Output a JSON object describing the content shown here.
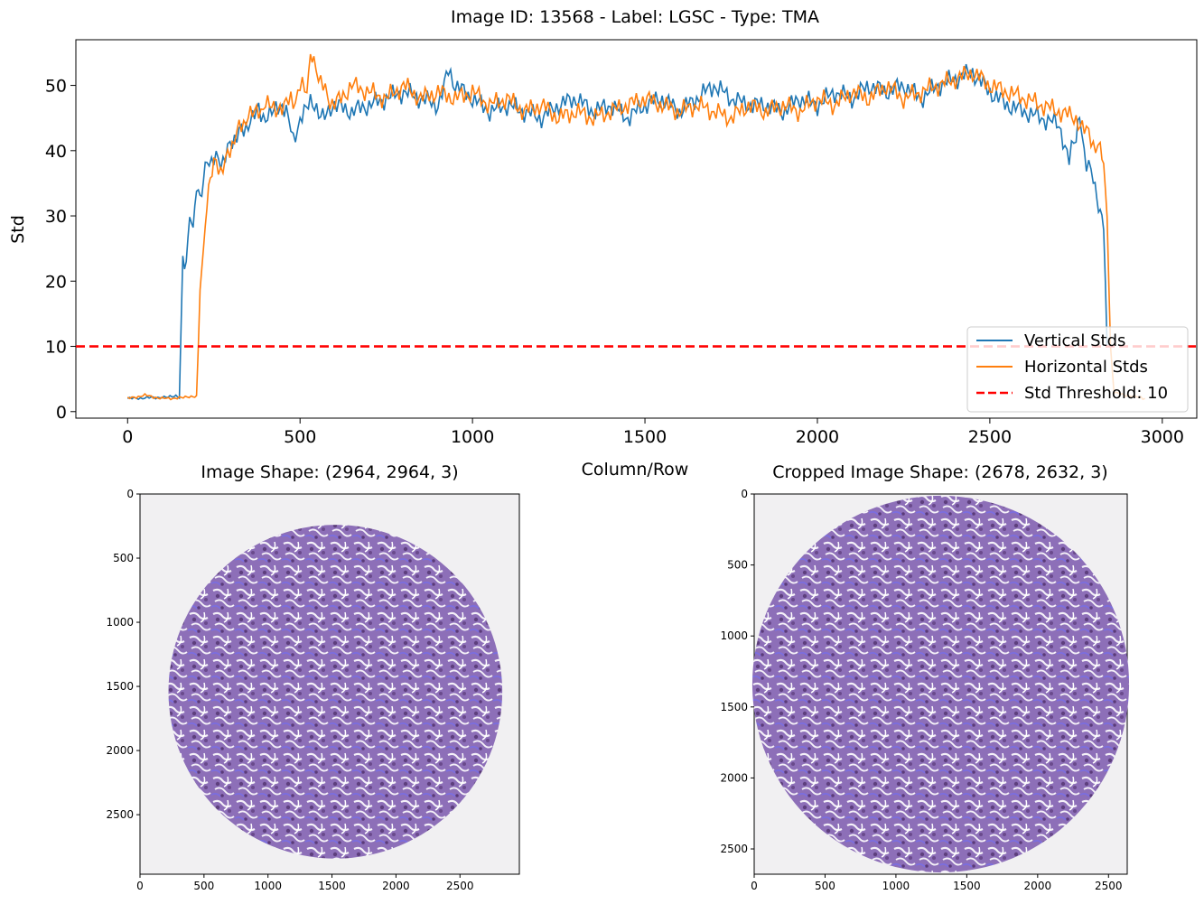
{
  "chart_data": [
    {
      "type": "line",
      "title": "Image ID: 13568 - Label: LGSC - Type: TMA",
      "xlabel": "Column/Row",
      "ylabel": "Std",
      "xlim": [
        -150,
        3100
      ],
      "ylim": [
        -1,
        57
      ],
      "xticks": [
        0,
        500,
        1000,
        1500,
        2000,
        2500,
        3000
      ],
      "yticks": [
        0,
        10,
        20,
        30,
        40,
        50
      ],
      "legend_position": "lower-right",
      "threshold": {
        "name": "Std Threshold: 10",
        "value": 10,
        "color": "#ff0000"
      },
      "series": [
        {
          "name": "Vertical Stds",
          "color": "#1f77b4",
          "x": [
            0,
            50,
            100,
            140,
            150,
            160,
            170,
            180,
            190,
            200,
            210,
            220,
            230,
            250,
            270,
            290,
            310,
            330,
            350,
            380,
            400,
            430,
            460,
            480,
            500,
            530,
            560,
            600,
            650,
            700,
            750,
            800,
            850,
            900,
            930,
            950,
            1000,
            1050,
            1100,
            1150,
            1200,
            1250,
            1300,
            1350,
            1400,
            1450,
            1500,
            1550,
            1600,
            1650,
            1700,
            1750,
            1800,
            1850,
            1900,
            1950,
            2000,
            2050,
            2100,
            2150,
            2200,
            2250,
            2300,
            2350,
            2400,
            2450,
            2500,
            2550,
            2600,
            2650,
            2700,
            2730,
            2750,
            2760,
            2780,
            2800,
            2810,
            2820,
            2830,
            2835,
            2840
          ],
          "y": [
            2,
            2.1,
            2.2,
            2.3,
            2.2,
            24,
            23,
            30,
            28,
            35,
            33,
            36,
            38,
            39,
            38,
            40,
            42,
            43,
            44,
            46,
            45,
            46,
            47,
            41,
            45,
            47,
            46,
            47,
            46,
            47,
            48,
            49,
            48,
            47,
            52,
            50,
            48,
            46,
            47,
            46,
            45,
            47,
            48,
            46,
            47,
            45,
            47,
            48,
            46,
            48,
            50,
            48,
            47,
            47,
            46,
            48,
            47,
            49,
            48,
            50,
            49,
            50,
            48,
            50,
            51,
            52,
            49,
            47,
            46,
            45,
            44,
            39,
            42,
            45,
            38,
            36,
            32,
            30,
            28,
            20,
            10
          ]
        },
        {
          "name": "Horizontal Stds",
          "color": "#ff7f0e",
          "x": [
            0,
            50,
            100,
            150,
            190,
            200,
            205,
            210,
            220,
            230,
            240,
            250,
            270,
            290,
            310,
            330,
            350,
            380,
            400,
            430,
            460,
            480,
            500,
            520,
            530,
            540,
            560,
            580,
            600,
            650,
            700,
            750,
            800,
            850,
            900,
            950,
            1000,
            1050,
            1100,
            1150,
            1200,
            1250,
            1300,
            1350,
            1400,
            1450,
            1500,
            1550,
            1600,
            1650,
            1700,
            1750,
            1800,
            1850,
            1900,
            1950,
            2000,
            2050,
            2100,
            2150,
            2200,
            2250,
            2300,
            2350,
            2400,
            2450,
            2500,
            2550,
            2600,
            2650,
            2700,
            2750,
            2780,
            2800,
            2820,
            2830,
            2840,
            2850,
            2860,
            2900,
            2950
          ],
          "y": [
            2,
            2.5,
            2,
            2.1,
            2.2,
            2.3,
            10,
            20,
            25,
            32,
            35,
            38,
            37,
            39,
            42,
            44,
            45,
            46,
            47,
            46,
            48,
            47,
            50,
            49,
            55,
            53,
            51,
            48,
            47,
            50,
            49,
            48,
            50,
            48,
            49,
            48,
            49,
            47,
            48,
            46,
            47,
            45,
            46,
            45,
            46,
            47,
            48,
            47,
            46,
            47,
            46,
            45,
            47,
            46,
            47,
            46,
            48,
            47,
            49,
            48,
            50,
            48,
            49,
            50,
            51,
            52,
            50,
            49,
            48,
            47,
            46,
            45,
            43,
            41,
            40,
            38,
            30,
            10,
            3,
            2.5,
            2
          ]
        }
      ]
    },
    {
      "type": "image",
      "title": "Image Shape: (2964, 2964, 3)",
      "xlim": [
        0,
        2964
      ],
      "ylim": [
        2964,
        0
      ],
      "xticks": [
        0,
        500,
        1000,
        1500,
        2000,
        2500
      ],
      "yticks": [
        0,
        500,
        1000,
        1500,
        2000,
        2500
      ],
      "tissue_color": "#9a7fc4"
    },
    {
      "type": "image",
      "title": "Cropped Image Shape: (2678, 2632, 3)",
      "xlim": [
        0,
        2632
      ],
      "ylim": [
        2678,
        0
      ],
      "xticks": [
        0,
        500,
        1000,
        1500,
        2000,
        2500
      ],
      "yticks": [
        0,
        500,
        1000,
        1500,
        2000,
        2500
      ],
      "tissue_color": "#9a7fc4"
    }
  ]
}
